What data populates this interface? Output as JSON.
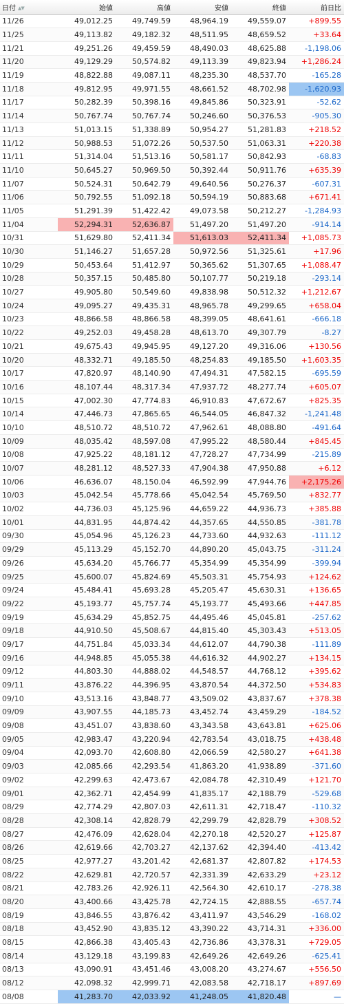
{
  "table": {
    "headers": [
      "日付",
      "始値",
      "高値",
      "安値",
      "終値",
      "前日比"
    ],
    "rows": [
      {
        "date": "11/26",
        "open": "49,012.25",
        "high": "49,749.59",
        "low": "48,964.19",
        "close": "49,559.07",
        "change": "+899.55"
      },
      {
        "date": "11/25",
        "open": "49,113.82",
        "high": "49,182.32",
        "low": "48,511.95",
        "close": "48,659.52",
        "change": "+33.64"
      },
      {
        "date": "11/21",
        "open": "49,251.26",
        "high": "49,459.59",
        "low": "48,490.03",
        "close": "48,625.88",
        "change": "-1,198.06"
      },
      {
        "date": "11/20",
        "open": "49,129.29",
        "high": "50,574.82",
        "low": "49,113.39",
        "close": "49,823.94",
        "change": "+1,286.24"
      },
      {
        "date": "11/19",
        "open": "48,822.88",
        "high": "49,087.11",
        "low": "48,235.30",
        "close": "48,537.70",
        "change": "-165.28"
      },
      {
        "date": "11/18",
        "open": "49,812.95",
        "high": "49,971.55",
        "low": "48,661.52",
        "close": "48,702.98",
        "change": "-1,620.93",
        "highlight": {
          "change": "lo"
        }
      },
      {
        "date": "11/17",
        "open": "50,282.39",
        "high": "50,398.16",
        "low": "49,845.86",
        "close": "50,323.91",
        "change": "-52.62"
      },
      {
        "date": "11/14",
        "open": "50,767.74",
        "high": "50,767.74",
        "low": "50,246.60",
        "close": "50,376.53",
        "change": "-905.30"
      },
      {
        "date": "11/13",
        "open": "51,013.15",
        "high": "51,338.89",
        "low": "50,954.27",
        "close": "51,281.83",
        "change": "+218.52"
      },
      {
        "date": "11/12",
        "open": "50,988.53",
        "high": "51,072.26",
        "low": "50,537.50",
        "close": "51,063.31",
        "change": "+220.38"
      },
      {
        "date": "11/11",
        "open": "51,314.04",
        "high": "51,513.16",
        "low": "50,581.17",
        "close": "50,842.93",
        "change": "-68.83"
      },
      {
        "date": "11/10",
        "open": "50,645.27",
        "high": "50,969.50",
        "low": "50,392.44",
        "close": "50,911.76",
        "change": "+635.39"
      },
      {
        "date": "11/07",
        "open": "50,524.31",
        "high": "50,642.79",
        "low": "49,640.56",
        "close": "50,276.37",
        "change": "-607.31"
      },
      {
        "date": "11/06",
        "open": "50,792.55",
        "high": "51,092.18",
        "low": "50,594.19",
        "close": "50,883.68",
        "change": "+671.41"
      },
      {
        "date": "11/05",
        "open": "51,291.39",
        "high": "51,422.42",
        "low": "49,073.58",
        "close": "50,212.27",
        "change": "-1,284.93"
      },
      {
        "date": "11/04",
        "open": "52,294.31",
        "high": "52,636.87",
        "low": "51,497.20",
        "close": "51,497.20",
        "change": "-914.14",
        "highlight": {
          "open": "hi",
          "high": "hi"
        }
      },
      {
        "date": "10/31",
        "open": "51,629.80",
        "high": "52,411.34",
        "low": "51,613.03",
        "close": "52,411.34",
        "change": "+1,085.73",
        "highlight": {
          "low": "hi",
          "close": "hi"
        }
      },
      {
        "date": "10/30",
        "open": "51,146.27",
        "high": "51,657.28",
        "low": "50,972.56",
        "close": "51,325.61",
        "change": "+17.96"
      },
      {
        "date": "10/29",
        "open": "50,453.64",
        "high": "51,412.97",
        "low": "50,365.62",
        "close": "51,307.65",
        "change": "+1,088.47"
      },
      {
        "date": "10/28",
        "open": "50,357.15",
        "high": "50,485.80",
        "low": "50,107.77",
        "close": "50,219.18",
        "change": "-293.14"
      },
      {
        "date": "10/27",
        "open": "49,905.80",
        "high": "50,549.60",
        "low": "49,838.98",
        "close": "50,512.32",
        "change": "+1,212.67"
      },
      {
        "date": "10/24",
        "open": "49,095.27",
        "high": "49,435.31",
        "low": "48,965.78",
        "close": "49,299.65",
        "change": "+658.04"
      },
      {
        "date": "10/23",
        "open": "48,866.58",
        "high": "48,866.58",
        "low": "48,399.05",
        "close": "48,641.61",
        "change": "-666.18"
      },
      {
        "date": "10/22",
        "open": "49,252.03",
        "high": "49,458.28",
        "low": "48,613.70",
        "close": "49,307.79",
        "change": "-8.27"
      },
      {
        "date": "10/21",
        "open": "49,675.43",
        "high": "49,945.95",
        "low": "49,127.20",
        "close": "49,316.06",
        "change": "+130.56"
      },
      {
        "date": "10/20",
        "open": "48,332.71",
        "high": "49,185.50",
        "low": "48,254.83",
        "close": "49,185.50",
        "change": "+1,603.35"
      },
      {
        "date": "10/17",
        "open": "47,820.97",
        "high": "48,140.90",
        "low": "47,494.31",
        "close": "47,582.15",
        "change": "-695.59"
      },
      {
        "date": "10/16",
        "open": "48,107.44",
        "high": "48,317.34",
        "low": "47,937.72",
        "close": "48,277.74",
        "change": "+605.07"
      },
      {
        "date": "10/15",
        "open": "47,002.30",
        "high": "47,774.83",
        "low": "46,910.83",
        "close": "47,672.67",
        "change": "+825.35"
      },
      {
        "date": "10/14",
        "open": "47,446.73",
        "high": "47,865.65",
        "low": "46,544.05",
        "close": "46,847.32",
        "change": "-1,241.48"
      },
      {
        "date": "10/10",
        "open": "48,510.72",
        "high": "48,510.72",
        "low": "47,962.61",
        "close": "48,088.80",
        "change": "-491.64"
      },
      {
        "date": "10/09",
        "open": "48,035.42",
        "high": "48,597.08",
        "low": "47,995.22",
        "close": "48,580.44",
        "change": "+845.45"
      },
      {
        "date": "10/08",
        "open": "47,925.22",
        "high": "48,181.12",
        "low": "47,728.27",
        "close": "47,734.99",
        "change": "-215.89"
      },
      {
        "date": "10/07",
        "open": "48,281.12",
        "high": "48,527.33",
        "low": "47,904.38",
        "close": "47,950.88",
        "change": "+6.12"
      },
      {
        "date": "10/06",
        "open": "46,636.07",
        "high": "48,150.04",
        "low": "46,592.99",
        "close": "47,944.76",
        "change": "+2,175.26",
        "highlight": {
          "change": "hi"
        }
      },
      {
        "date": "10/03",
        "open": "45,042.54",
        "high": "45,778.66",
        "low": "45,042.54",
        "close": "45,769.50",
        "change": "+832.77"
      },
      {
        "date": "10/02",
        "open": "44,736.03",
        "high": "45,125.96",
        "low": "44,659.22",
        "close": "44,936.73",
        "change": "+385.88"
      },
      {
        "date": "10/01",
        "open": "44,831.95",
        "high": "44,874.42",
        "low": "44,357.65",
        "close": "44,550.85",
        "change": "-381.78"
      },
      {
        "date": "09/30",
        "open": "45,054.96",
        "high": "45,126.23",
        "low": "44,733.60",
        "close": "44,932.63",
        "change": "-111.12"
      },
      {
        "date": "09/29",
        "open": "45,113.29",
        "high": "45,152.70",
        "low": "44,890.20",
        "close": "45,043.75",
        "change": "-311.24"
      },
      {
        "date": "09/26",
        "open": "45,634.20",
        "high": "45,766.77",
        "low": "45,354.99",
        "close": "45,354.99",
        "change": "-399.94"
      },
      {
        "date": "09/25",
        "open": "45,600.07",
        "high": "45,824.69",
        "low": "45,503.31",
        "close": "45,754.93",
        "change": "+124.62"
      },
      {
        "date": "09/24",
        "open": "45,484.41",
        "high": "45,693.28",
        "low": "45,205.47",
        "close": "45,630.31",
        "change": "+136.65"
      },
      {
        "date": "09/22",
        "open": "45,193.77",
        "high": "45,757.74",
        "low": "45,193.77",
        "close": "45,493.66",
        "change": "+447.85"
      },
      {
        "date": "09/19",
        "open": "45,634.29",
        "high": "45,852.75",
        "low": "44,495.46",
        "close": "45,045.81",
        "change": "-257.62"
      },
      {
        "date": "09/18",
        "open": "44,910.50",
        "high": "45,508.67",
        "low": "44,815.40",
        "close": "45,303.43",
        "change": "+513.05"
      },
      {
        "date": "09/17",
        "open": "44,751.84",
        "high": "45,033.34",
        "low": "44,612.07",
        "close": "44,790.38",
        "change": "-111.89"
      },
      {
        "date": "09/16",
        "open": "44,948.85",
        "high": "45,055.38",
        "low": "44,616.32",
        "close": "44,902.27",
        "change": "+134.15"
      },
      {
        "date": "09/12",
        "open": "44,803.30",
        "high": "44,888.02",
        "low": "44,548.57",
        "close": "44,768.12",
        "change": "+395.62"
      },
      {
        "date": "09/11",
        "open": "43,876.22",
        "high": "44,396.95",
        "low": "43,870.54",
        "close": "44,372.50",
        "change": "+534.83"
      },
      {
        "date": "09/10",
        "open": "43,513.16",
        "high": "43,848.77",
        "low": "43,509.02",
        "close": "43,837.67",
        "change": "+378.38"
      },
      {
        "date": "09/09",
        "open": "43,907.55",
        "high": "44,185.73",
        "low": "43,452.74",
        "close": "43,459.29",
        "change": "-184.52"
      },
      {
        "date": "09/08",
        "open": "43,451.07",
        "high": "43,838.60",
        "low": "43,343.58",
        "close": "43,643.81",
        "change": "+625.06"
      },
      {
        "date": "09/05",
        "open": "42,983.47",
        "high": "43,220.94",
        "low": "42,783.54",
        "close": "43,018.75",
        "change": "+438.48"
      },
      {
        "date": "09/04",
        "open": "42,093.70",
        "high": "42,608.80",
        "low": "42,066.59",
        "close": "42,580.27",
        "change": "+641.38"
      },
      {
        "date": "09/03",
        "open": "42,085.66",
        "high": "42,293.54",
        "low": "41,863.20",
        "close": "41,938.89",
        "change": "-371.60"
      },
      {
        "date": "09/02",
        "open": "42,299.63",
        "high": "42,473.67",
        "low": "42,084.78",
        "close": "42,310.49",
        "change": "+121.70"
      },
      {
        "date": "09/01",
        "open": "42,362.71",
        "high": "42,454.99",
        "low": "41,835.17",
        "close": "42,188.79",
        "change": "-529.68"
      },
      {
        "date": "08/29",
        "open": "42,774.29",
        "high": "42,807.03",
        "low": "42,611.31",
        "close": "42,718.47",
        "change": "-110.32"
      },
      {
        "date": "08/28",
        "open": "42,308.14",
        "high": "42,828.79",
        "low": "42,299.79",
        "close": "42,828.79",
        "change": "+308.52"
      },
      {
        "date": "08/27",
        "open": "42,476.09",
        "high": "42,628.04",
        "low": "42,270.18",
        "close": "42,520.27",
        "change": "+125.87"
      },
      {
        "date": "08/26",
        "open": "42,619.66",
        "high": "42,703.27",
        "low": "42,137.62",
        "close": "42,394.40",
        "change": "-413.42"
      },
      {
        "date": "08/25",
        "open": "42,977.27",
        "high": "43,201.42",
        "low": "42,681.37",
        "close": "42,807.82",
        "change": "+174.53"
      },
      {
        "date": "08/22",
        "open": "42,629.81",
        "high": "42,720.57",
        "low": "42,331.39",
        "close": "42,633.29",
        "change": "+23.12"
      },
      {
        "date": "08/21",
        "open": "42,783.26",
        "high": "42,926.11",
        "low": "42,564.30",
        "close": "42,610.17",
        "change": "-278.38"
      },
      {
        "date": "08/20",
        "open": "43,400.66",
        "high": "43,425.78",
        "low": "42,724.15",
        "close": "42,888.55",
        "change": "-657.74"
      },
      {
        "date": "08/19",
        "open": "43,846.55",
        "high": "43,876.42",
        "low": "43,411.97",
        "close": "43,546.29",
        "change": "-168.02"
      },
      {
        "date": "08/18",
        "open": "43,452.90",
        "high": "43,835.12",
        "low": "43,390.22",
        "close": "43,714.31",
        "change": "+336.00"
      },
      {
        "date": "08/15",
        "open": "42,866.38",
        "high": "43,405.43",
        "low": "42,736.86",
        "close": "43,378.31",
        "change": "+729.05"
      },
      {
        "date": "08/14",
        "open": "43,129.18",
        "high": "43,199.83",
        "low": "42,649.26",
        "close": "42,649.26",
        "change": "-625.41"
      },
      {
        "date": "08/13",
        "open": "43,090.91",
        "high": "43,451.46",
        "low": "43,008.20",
        "close": "43,274.67",
        "change": "+556.50"
      },
      {
        "date": "08/12",
        "open": "42,098.32",
        "high": "42,999.71",
        "low": "42,083.58",
        "close": "42,718.17",
        "change": "+897.69"
      },
      {
        "date": "08/08",
        "open": "41,283.70",
        "high": "42,033.92",
        "low": "41,248.05",
        "close": "41,820.48",
        "change": "—",
        "highlight": {
          "open": "lo",
          "high": "lo",
          "low": "lo",
          "close": "lo"
        }
      }
    ]
  },
  "colors": {
    "up": "#ee0000",
    "down": "#1a66c8",
    "highlight_high": "#f9b2b2",
    "highlight_low": "#9cc6f2"
  },
  "icons": {
    "sort": "sort-arrows-icon"
  }
}
